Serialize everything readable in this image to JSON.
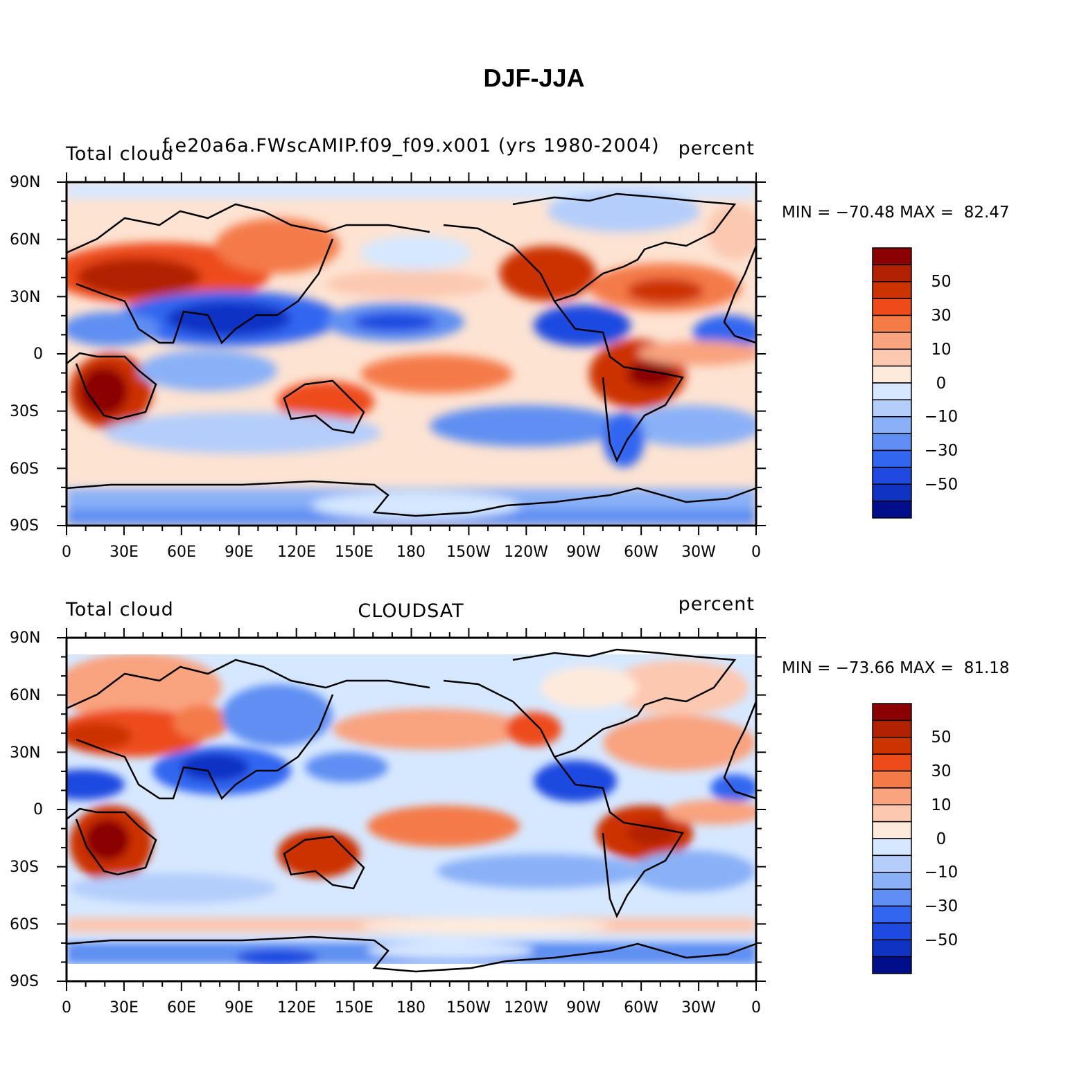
{
  "title": "DJF-JJA",
  "panels": [
    {
      "id": "top",
      "left_label": "Total cloud",
      "center_label": "f.e20a6a.FWscAMIP.f09_f09.x001 (yrs 1980-2004)",
      "right_label": "percent",
      "minmax": "MIN = −70.48 MAX =  82.47"
    },
    {
      "id": "bottom",
      "left_label": "Total cloud",
      "center_label": "CLOUDSAT",
      "right_label": "percent",
      "minmax": "MIN = −73.66 MAX =  81.18"
    }
  ],
  "lat_ticks": [
    "90N",
    "60N",
    "30N",
    "0",
    "30S",
    "60S",
    "90S"
  ],
  "lon_ticks": [
    "0",
    "30E",
    "60E",
    "90E",
    "120E",
    "150E",
    "180",
    "150W",
    "120W",
    "90W",
    "60W",
    "30W",
    "0"
  ],
  "colorbar": {
    "labels": [
      "50",
      "30",
      "10",
      "0",
      "−10",
      "−30",
      "−50"
    ],
    "colors": [
      "#8b0000",
      "#b22200",
      "#cc3300",
      "#ee4b1b",
      "#f47a48",
      "#f9a37f",
      "#fcc8b0",
      "#feeadb",
      "#d6e8ff",
      "#b4cdfb",
      "#8ab1f7",
      "#5f8ff2",
      "#3366f0",
      "#1f49e0",
      "#1133c4",
      "#000e8c"
    ]
  }
}
